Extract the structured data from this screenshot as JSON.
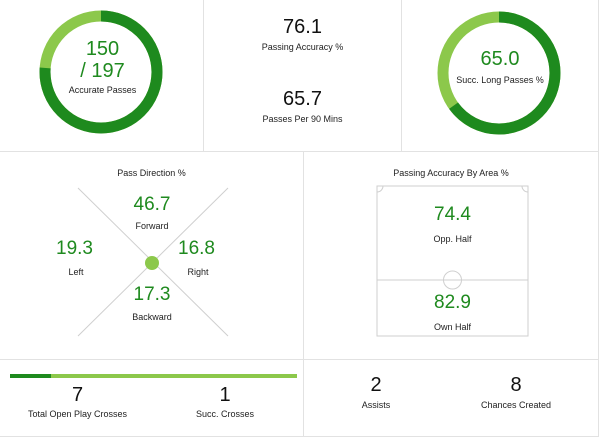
{
  "colors": {
    "dark_green": "#1e8a1e",
    "light_green": "#8cc84b",
    "value_green": "#1f8a1f"
  },
  "accurate_passes": {
    "value_line1": "150",
    "value_line2": "/ 197",
    "label": "Accurate Passes",
    "fraction": 0.761
  },
  "passing_accuracy": {
    "value": "76.1",
    "label": "Passing Accuracy %"
  },
  "passes_per_90": {
    "value": "65.7",
    "label": "Passes Per 90 Mins"
  },
  "long_passes": {
    "value": "65.0",
    "label": "Succ. Long Passes %",
    "fraction": 0.65
  },
  "pass_direction": {
    "title": "Pass Direction %",
    "forward": {
      "value": "46.7",
      "label": "Forward"
    },
    "left": {
      "value": "19.3",
      "label": "Left"
    },
    "right": {
      "value": "16.8",
      "label": "Right"
    },
    "backward": {
      "value": "17.3",
      "label": "Backward"
    }
  },
  "area_accuracy": {
    "title": "Passing Accuracy By Area %",
    "opp_half": {
      "value": "74.4",
      "label": "Opp. Half"
    },
    "own_half": {
      "value": "82.9",
      "label": "Own Half"
    }
  },
  "crosses": {
    "total": {
      "value": "7",
      "label": "Total Open Play Crosses"
    },
    "successful": {
      "value": "1",
      "label": "Succ. Crosses"
    },
    "success_fraction": 0.143
  },
  "assists": {
    "value": "2",
    "label": "Assists"
  },
  "chances_created": {
    "value": "8",
    "label": "Chances Created"
  }
}
